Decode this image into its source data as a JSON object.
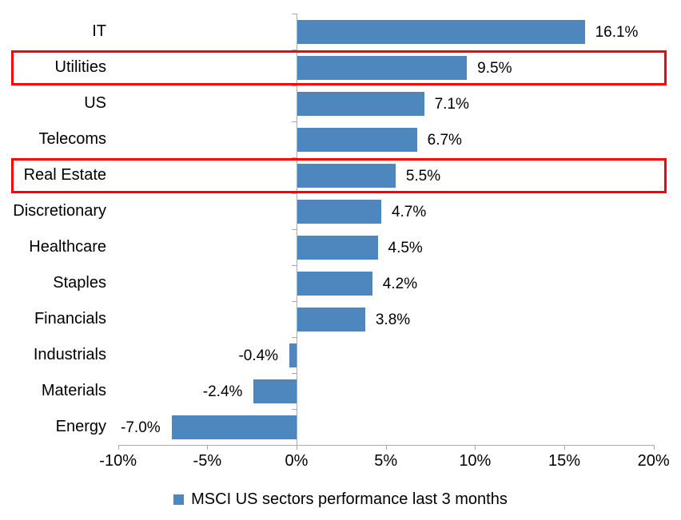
{
  "chart_data": {
    "type": "bar",
    "orientation": "horizontal",
    "categories": [
      "IT",
      "Utilities",
      "US",
      "Telecoms",
      "Real Estate",
      "Discretionary",
      "Healthcare",
      "Staples",
      "Financials",
      "Industrials",
      "Materials",
      "Energy"
    ],
    "values": [
      16.1,
      9.5,
      7.1,
      6.7,
      5.5,
      4.7,
      4.5,
      4.2,
      3.8,
      -0.4,
      -2.4,
      -7.0
    ],
    "value_labels": [
      "16.1%",
      "9.5%",
      "7.1%",
      "6.7%",
      "5.5%",
      "4.7%",
      "4.5%",
      "4.2%",
      "3.8%",
      "-0.4%",
      "-2.4%",
      "-7.0%"
    ],
    "highlighted_categories": [
      "Utilities",
      "Real Estate"
    ],
    "x_axis": {
      "min": -10,
      "max": 20,
      "ticks": [
        "-10%",
        "-5%",
        "0%",
        "5%",
        "10%",
        "15%",
        "20%"
      ],
      "tick_values": [
        -10,
        -5,
        0,
        5,
        10,
        15,
        20
      ]
    },
    "bar_color": "#4e86be",
    "highlight_color": "#fe0000",
    "grid": false,
    "legend": {
      "position": "bottom",
      "marker_color": "#4e86be",
      "label": "MSCI US sectors performance last 3 months"
    }
  }
}
